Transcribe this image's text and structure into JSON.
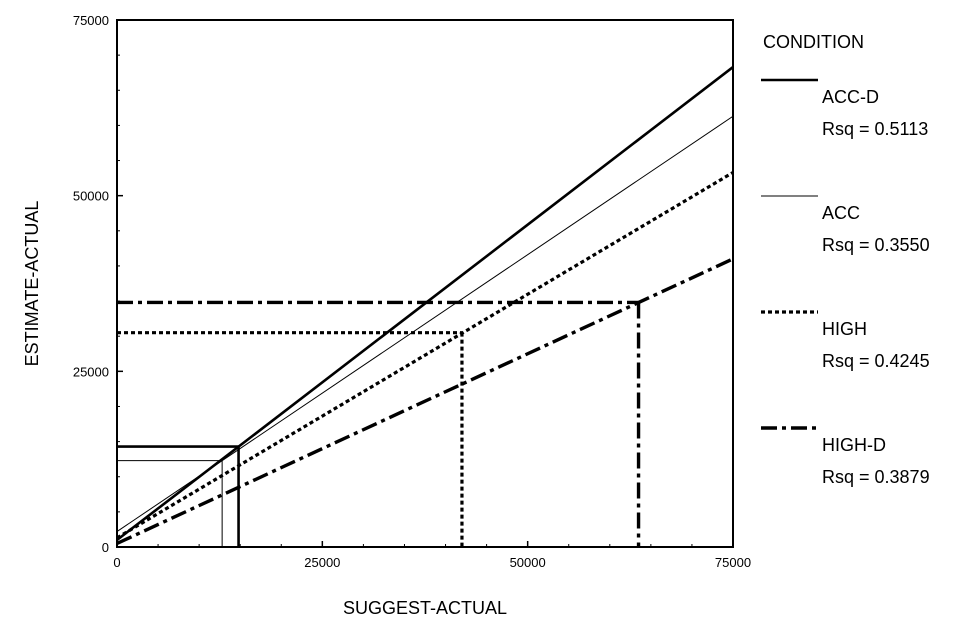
{
  "chart_data": {
    "type": "line",
    "xlabel": "SUGGEST-ACTUAL",
    "ylabel": "ESTIMATE-ACTUAL",
    "xlim": [
      0,
      75000
    ],
    "ylim": [
      0,
      75000
    ],
    "x_ticks": [
      "0",
      "25000",
      "50000",
      "75000"
    ],
    "y_ticks": [
      "0",
      "25000",
      "50000",
      "75000"
    ],
    "x_tick_values": [
      0,
      25000,
      50000,
      75000
    ],
    "y_tick_values": [
      0,
      25000,
      50000,
      75000
    ],
    "grid": false,
    "legend": {
      "title": "CONDITION",
      "placement": "right"
    },
    "series": [
      {
        "name": "ACC-D",
        "rsq": "Rsq = 0.5113",
        "style": "solid-thick",
        "x": [
          0,
          75000
        ],
        "y": [
          1000,
          68300
        ],
        "guide": {
          "x": 14800,
          "y": 14300
        }
      },
      {
        "name": "ACC",
        "rsq": "Rsq = 0.3550",
        "style": "solid-thin",
        "x": [
          0,
          75000
        ],
        "y": [
          2200,
          61300
        ],
        "guide": {
          "x": 12800,
          "y": 12300
        }
      },
      {
        "name": "HIGH",
        "rsq": "Rsq = 0.4245",
        "style": "dotted",
        "x": [
          0,
          75000
        ],
        "y": [
          1300,
          53300
        ],
        "guide": {
          "x": 42000,
          "y": 30500
        }
      },
      {
        "name": "HIGH-D",
        "rsq": "Rsq = 0.3879",
        "style": "dash-dot",
        "x": [
          0,
          75000
        ],
        "y": [
          500,
          41000
        ],
        "guide": {
          "x": 63500,
          "y": 34800
        }
      }
    ]
  }
}
